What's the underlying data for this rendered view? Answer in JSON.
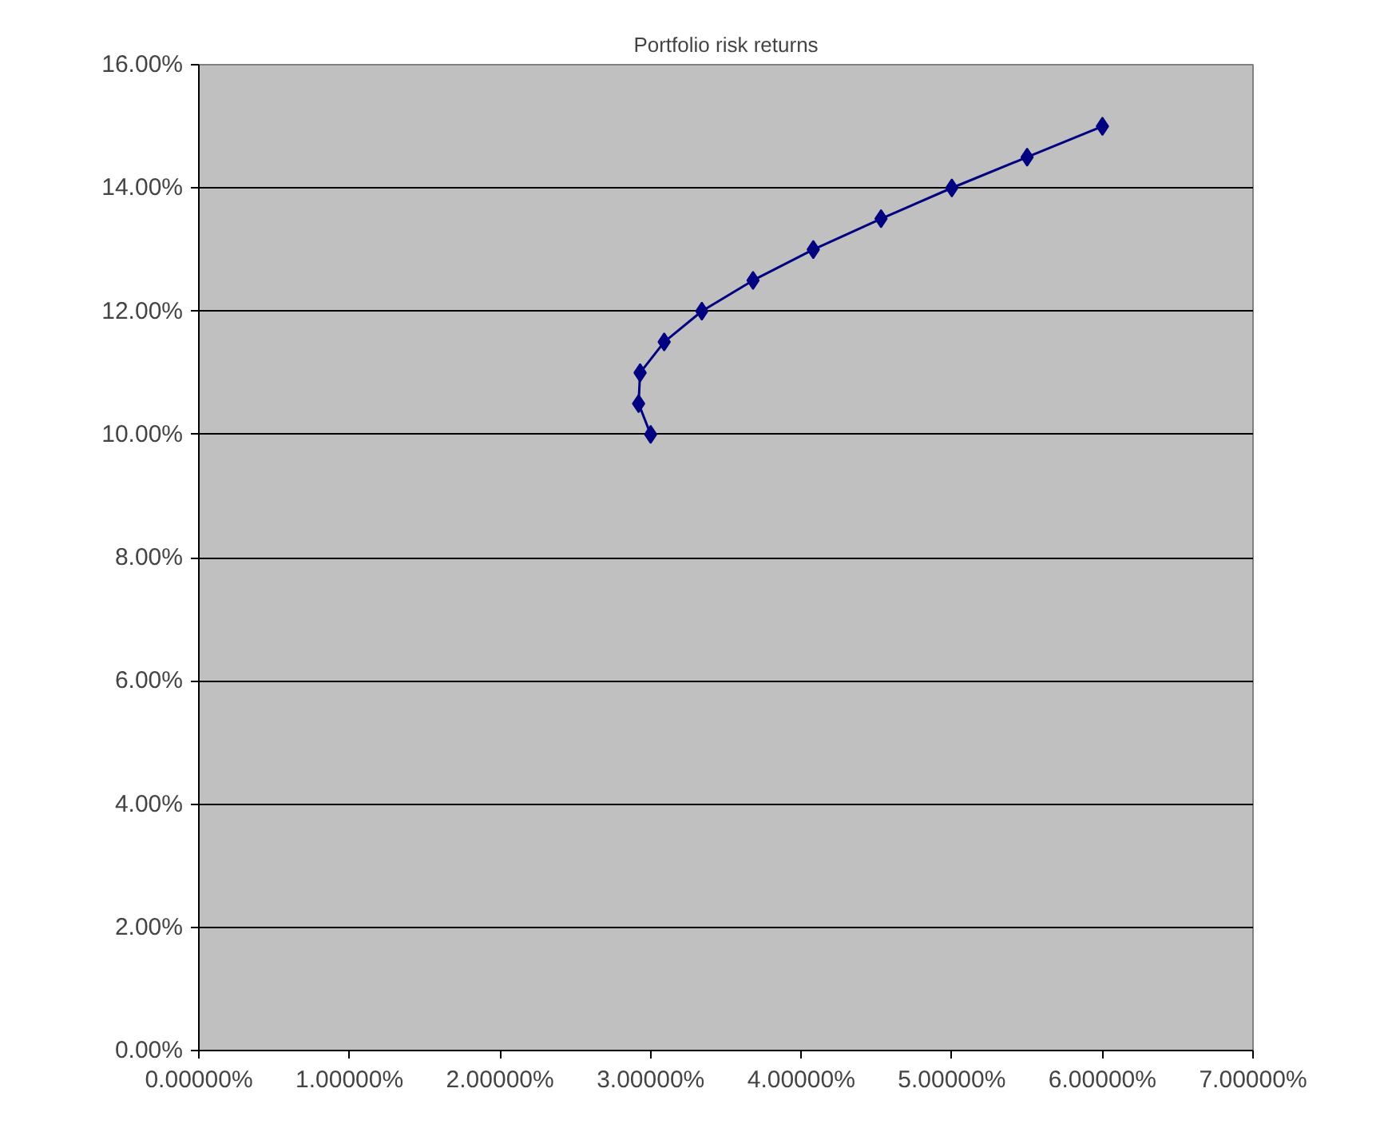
{
  "chart_data": {
    "type": "line",
    "title": "Portfolio risk returns",
    "x": [
      3.0,
      2.92,
      2.93,
      3.09,
      3.34,
      3.68,
      4.08,
      4.53,
      5.0,
      5.5,
      6.0
    ],
    "series": [
      {
        "color": "#000080",
        "values": [
          10.0,
          10.5,
          11.0,
          11.5,
          12.0,
          12.5,
          13.0,
          13.5,
          14.0,
          14.5,
          15.0
        ]
      }
    ],
    "marker": "diamond",
    "line_style": "solid",
    "grid": "y",
    "xlim": [
      0,
      7
    ],
    "ylim": [
      0,
      16
    ],
    "xticks": [
      {
        "value": 0,
        "label": "0.00000%"
      },
      {
        "value": 1,
        "label": "1.00000%"
      },
      {
        "value": 2,
        "label": "2.00000%"
      },
      {
        "value": 3,
        "label": "3.00000%"
      },
      {
        "value": 4,
        "label": "4.00000%"
      },
      {
        "value": 5,
        "label": "5.00000%"
      },
      {
        "value": 6,
        "label": "6.00000%"
      },
      {
        "value": 7,
        "label": "7.00000%"
      }
    ],
    "yticks": [
      {
        "value": 0,
        "label": "0.00%"
      },
      {
        "value": 2,
        "label": "2.00%"
      },
      {
        "value": 4,
        "label": "4.00%"
      },
      {
        "value": 6,
        "label": "6.00%"
      },
      {
        "value": 8,
        "label": "8.00%"
      },
      {
        "value": 10,
        "label": "10.00%"
      },
      {
        "value": 12,
        "label": "12.00%"
      },
      {
        "value": 14,
        "label": "14.00%"
      },
      {
        "value": 16,
        "label": "16.00%"
      }
    ]
  }
}
